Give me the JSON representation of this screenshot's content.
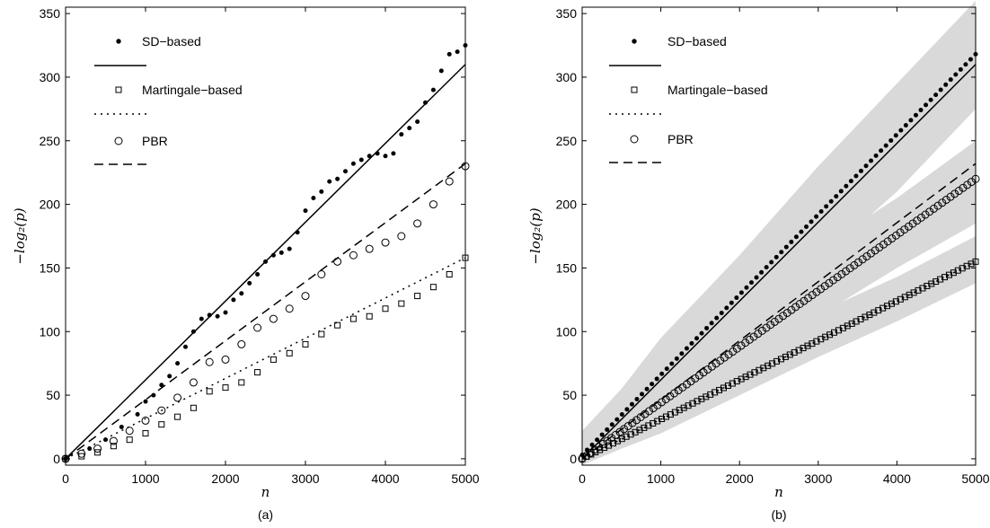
{
  "chart_data": [
    {
      "type": "scatter",
      "panel_caption": "(a)",
      "xlabel": "n",
      "ylabel": "−log₂(p)",
      "xlim": [
        0,
        5000
      ],
      "ylim": [
        -5,
        355
      ],
      "xticks": [
        "0",
        "1000",
        "2000",
        "3000",
        "4000",
        "5000"
      ],
      "yticks": [
        "0",
        "50",
        "100",
        "150",
        "200",
        "250",
        "300",
        "350"
      ],
      "grid": false,
      "legend_placement": "top-left",
      "legend": [
        "SD−based",
        "Martingale−based",
        "PBR"
      ],
      "series": [
        {
          "name": "SD−based",
          "kind": "markers",
          "marker": "dot",
          "points": [
            [
              0,
              0
            ],
            [
              300,
              8
            ],
            [
              500,
              15
            ],
            [
              700,
              25
            ],
            [
              900,
              35
            ],
            [
              1000,
              45
            ],
            [
              1100,
              50
            ],
            [
              1200,
              58
            ],
            [
              1300,
              65
            ],
            [
              1400,
              75
            ],
            [
              1500,
              88
            ],
            [
              1600,
              100
            ],
            [
              1700,
              110
            ],
            [
              1800,
              113
            ],
            [
              1900,
              112
            ],
            [
              2000,
              115
            ],
            [
              2100,
              125
            ],
            [
              2200,
              130
            ],
            [
              2300,
              138
            ],
            [
              2400,
              145
            ],
            [
              2500,
              155
            ],
            [
              2600,
              160
            ],
            [
              2700,
              162
            ],
            [
              2800,
              165
            ],
            [
              2900,
              178
            ],
            [
              3000,
              195
            ],
            [
              3100,
              205
            ],
            [
              3200,
              210
            ],
            [
              3300,
              218
            ],
            [
              3400,
              220
            ],
            [
              3500,
              226
            ],
            [
              3600,
              232
            ],
            [
              3700,
              235
            ],
            [
              3800,
              238
            ],
            [
              3900,
              240
            ],
            [
              4000,
              238
            ],
            [
              4100,
              240
            ],
            [
              4200,
              255
            ],
            [
              4300,
              260
            ],
            [
              4400,
              265
            ],
            [
              4500,
              280
            ],
            [
              4600,
              290
            ],
            [
              4700,
              305
            ],
            [
              4800,
              318
            ],
            [
              4900,
              320
            ],
            [
              5000,
              325
            ]
          ]
        },
        {
          "name": "",
          "kind": "line",
          "style": "solid",
          "x": [
            0,
            5000
          ],
          "y": [
            0,
            310
          ]
        },
        {
          "name": "Martingale−based",
          "kind": "markers",
          "marker": "square",
          "points": [
            [
              0,
              0
            ],
            [
              200,
              2
            ],
            [
              400,
              5
            ],
            [
              600,
              10
            ],
            [
              800,
              15
            ],
            [
              1000,
              20
            ],
            [
              1200,
              27
            ],
            [
              1400,
              33
            ],
            [
              1600,
              40
            ],
            [
              1800,
              53
            ],
            [
              2000,
              56
            ],
            [
              2200,
              60
            ],
            [
              2400,
              68
            ],
            [
              2600,
              78
            ],
            [
              2800,
              83
            ],
            [
              3000,
              90
            ],
            [
              3200,
              98
            ],
            [
              3400,
              105
            ],
            [
              3600,
              110
            ],
            [
              3800,
              112
            ],
            [
              4000,
              118
            ],
            [
              4200,
              122
            ],
            [
              4400,
              128
            ],
            [
              4600,
              135
            ],
            [
              4800,
              145
            ],
            [
              5000,
              158
            ]
          ]
        },
        {
          "name": "",
          "kind": "line",
          "style": "dotted",
          "x": [
            0,
            5000
          ],
          "y": [
            0,
            158
          ]
        },
        {
          "name": "PBR",
          "kind": "markers",
          "marker": "circle",
          "points": [
            [
              0,
              0
            ],
            [
              200,
              4
            ],
            [
              400,
              8
            ],
            [
              600,
              14
            ],
            [
              800,
              22
            ],
            [
              1000,
              30
            ],
            [
              1200,
              38
            ],
            [
              1400,
              48
            ],
            [
              1600,
              60
            ],
            [
              1800,
              76
            ],
            [
              2000,
              78
            ],
            [
              2200,
              90
            ],
            [
              2400,
              103
            ],
            [
              2600,
              110
            ],
            [
              2800,
              118
            ],
            [
              3000,
              128
            ],
            [
              3200,
              145
            ],
            [
              3400,
              155
            ],
            [
              3600,
              160
            ],
            [
              3800,
              165
            ],
            [
              4000,
              170
            ],
            [
              4200,
              175
            ],
            [
              4400,
              185
            ],
            [
              4600,
              200
            ],
            [
              4800,
              218
            ],
            [
              5000,
              230
            ]
          ]
        },
        {
          "name": "",
          "kind": "line",
          "style": "dashed",
          "x": [
            0,
            5000
          ],
          "y": [
            0,
            232
          ]
        }
      ]
    },
    {
      "type": "scatter",
      "panel_caption": "(b)",
      "xlabel": "n",
      "ylabel": "−log₂(p)",
      "xlim": [
        0,
        5000
      ],
      "ylim": [
        -5,
        355
      ],
      "xticks": [
        "0",
        "1000",
        "2000",
        "3000",
        "4000",
        "5000"
      ],
      "yticks": [
        "0",
        "50",
        "100",
        "150",
        "200",
        "250",
        "300",
        "350"
      ],
      "grid": false,
      "legend_placement": "top-left",
      "legend": [
        "SD−based",
        "Martingale−based",
        "PBR"
      ],
      "bands": [
        {
          "color": "#d9d9d9",
          "x": [
            0,
            500,
            1000,
            2000,
            3000,
            4000,
            5000
          ],
          "lower": [
            -5,
            20,
            45,
            100,
            155,
            210,
            275
          ],
          "upper": [
            22,
            55,
            95,
            160,
            230,
            295,
            360
          ]
        },
        {
          "color": "#d9d9d9",
          "x": [
            0,
            500,
            1000,
            2000,
            3000,
            4000,
            5000
          ],
          "lower": [
            -5,
            10,
            28,
            72,
            112,
            150,
            185
          ],
          "upper": [
            12,
            35,
            65,
            120,
            165,
            205,
            250
          ]
        },
        {
          "color": "#d9d9d9",
          "x": [
            0,
            500,
            1000,
            2000,
            3000,
            4000,
            5000
          ],
          "lower": [
            -5,
            8,
            20,
            50,
            80,
            108,
            138
          ],
          "upper": [
            8,
            25,
            45,
            80,
            115,
            143,
            175
          ]
        }
      ],
      "series": [
        {
          "name": "SD−based",
          "kind": "markers",
          "marker": "dot",
          "x_from": 0,
          "x_to": 5000,
          "count": 80,
          "y_start": 3,
          "y_end": 318
        },
        {
          "name": "",
          "kind": "line",
          "style": "solid",
          "x": [
            0,
            5000
          ],
          "y": [
            0,
            310
          ]
        },
        {
          "name": "Martingale−based",
          "kind": "markers",
          "marker": "square",
          "x_from": 0,
          "x_to": 5000,
          "count": 90,
          "y_start": 0,
          "y_end": 155
        },
        {
          "name": "",
          "kind": "line",
          "style": "dotted",
          "x": [
            0,
            5000
          ],
          "y": [
            0,
            155
          ]
        },
        {
          "name": "PBR",
          "kind": "markers",
          "marker": "circle",
          "x_from": 0,
          "x_to": 5000,
          "count": 95,
          "y_start": 0,
          "y_end": 220
        },
        {
          "name": "",
          "kind": "line",
          "style": "dashed",
          "x": [
            0,
            5000
          ],
          "y": [
            0,
            232
          ]
        }
      ]
    }
  ]
}
